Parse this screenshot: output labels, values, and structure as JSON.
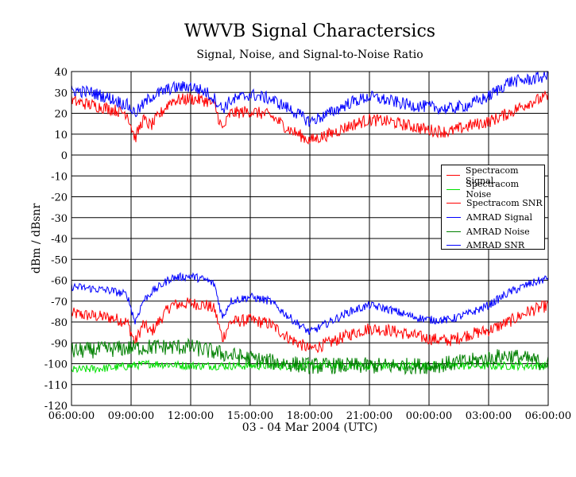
{
  "chart_data": {
    "type": "line",
    "title": "WWVB Signal Charactersics",
    "subtitle": "Signal, Noise, and Signal-to-Noise Ratio",
    "xlabel": "03 - 04 Mar 2004 (UTC)",
    "ylabel": "dBm / dBsnr",
    "ylim": [
      -120,
      40
    ],
    "yticks": [
      40,
      30,
      20,
      10,
      0,
      -10,
      -20,
      -30,
      -40,
      -50,
      -60,
      -70,
      -80,
      -90,
      -100,
      -110,
      -120
    ],
    "xlim": [
      0,
      24
    ],
    "xticks": [
      0,
      3,
      6,
      9,
      12,
      15,
      18,
      21,
      24
    ],
    "xtick_labels": [
      "06:00:00",
      "09:00:00",
      "12:00:00",
      "15:00:00",
      "18:00:00",
      "21:00:00",
      "00:00:00",
      "03:00:00",
      "06:00:00"
    ],
    "x_unit_note": "hours after 06:00 UTC",
    "grid": true,
    "legend_position": "right",
    "series": [
      {
        "name": "Spectracom Signal",
        "color": "#ff0000",
        "noise": 3,
        "x": [
          0,
          1,
          2,
          2.8,
          3.2,
          3.6,
          4,
          5,
          6,
          6.8,
          7.2,
          7.6,
          8,
          9,
          10,
          11,
          12,
          13,
          14,
          15,
          16,
          17,
          18,
          19,
          20,
          21,
          22,
          23,
          24
        ],
        "y": [
          -76,
          -77,
          -78,
          -80,
          -90,
          -81,
          -85,
          -72,
          -71,
          -72,
          -74,
          -88,
          -80,
          -79,
          -81,
          -88,
          -93,
          -90,
          -86,
          -83,
          -84,
          -86,
          -88,
          -89,
          -86,
          -84,
          -80,
          -75,
          -72
        ]
      },
      {
        "name": "Spectracom Noise",
        "color": "#00e000",
        "noise": 2,
        "x": [
          0,
          2,
          4,
          6,
          8,
          10,
          12,
          14,
          16,
          18,
          20,
          22,
          24
        ],
        "y": [
          -103,
          -102,
          -100,
          -101,
          -101,
          -101,
          -101,
          -101,
          -101,
          -101,
          -101,
          -101,
          -101
        ]
      },
      {
        "name": "Spectracom SNR",
        "color": "#ff0000",
        "noise": 3,
        "x": [
          0,
          1,
          2,
          2.8,
          3.2,
          3.6,
          4,
          5,
          6,
          6.8,
          7.2,
          7.6,
          8,
          9,
          10,
          11,
          12,
          13,
          14,
          15,
          16,
          17,
          18,
          19,
          20,
          21,
          22,
          23,
          24
        ],
        "y": [
          26,
          24,
          22,
          20,
          8,
          17,
          14,
          26,
          27,
          26,
          24,
          12,
          20,
          21,
          19,
          12,
          7,
          10,
          14,
          17,
          16,
          14,
          12,
          11,
          14,
          16,
          20,
          25,
          28
        ]
      },
      {
        "name": "AMRAD Signal",
        "color": "#0000ff",
        "noise": 2,
        "x": [
          0,
          1,
          2,
          2.8,
          3.2,
          3.6,
          4,
          5,
          6,
          6.8,
          7.2,
          7.6,
          8,
          9,
          10,
          11,
          12,
          13,
          14,
          15,
          16,
          17,
          18,
          19,
          20,
          21,
          22,
          23,
          24
        ],
        "y": [
          -63,
          -64,
          -65,
          -67,
          -80,
          -70,
          -66,
          -59,
          -58,
          -60,
          -62,
          -78,
          -70,
          -68,
          -70,
          -78,
          -85,
          -80,
          -75,
          -72,
          -74,
          -77,
          -79,
          -79,
          -76,
          -72,
          -66,
          -62,
          -59
        ]
      },
      {
        "name": "AMRAD Noise",
        "color": "#008000",
        "noise": 4,
        "x": [
          0,
          2,
          4,
          6,
          8,
          10,
          12,
          14,
          16,
          18,
          20,
          22,
          24
        ],
        "y": [
          -94,
          -93,
          -92,
          -92,
          -96,
          -99,
          -101,
          -101,
          -101,
          -101,
          -99,
          -96,
          -100
        ]
      },
      {
        "name": "AMRAD SNR",
        "color": "#0000ff",
        "noise": 3,
        "x": [
          0,
          1,
          2,
          2.8,
          3.2,
          3.6,
          4,
          5,
          6,
          6.8,
          7.2,
          7.6,
          8,
          9,
          10,
          11,
          12,
          13,
          14,
          15,
          16,
          17,
          18,
          19,
          20,
          21,
          22,
          23,
          24
        ],
        "y": [
          31,
          30,
          27,
          24,
          20,
          24,
          28,
          32,
          33,
          30,
          27,
          22,
          26,
          29,
          27,
          22,
          16,
          20,
          25,
          28,
          26,
          24,
          23,
          22,
          24,
          28,
          35,
          36,
          38
        ]
      }
    ]
  }
}
